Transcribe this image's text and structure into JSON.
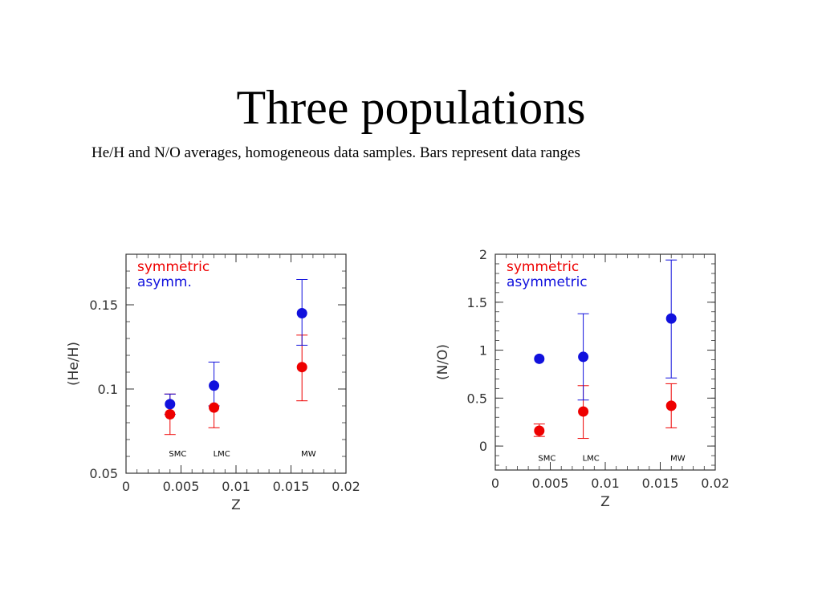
{
  "slide": {
    "title": "Three populations",
    "subtitle": "He/H and N/O averages, homogeneous data samples. Bars represent data ranges"
  },
  "colors": {
    "symmetric": "#ee0000",
    "asymmetric": "#1111dd",
    "frame": "#333333"
  },
  "chart_data": [
    {
      "type": "scatter",
      "error_bars": true,
      "xlabel": "Z",
      "ylabel": "(He/H)",
      "xlim": [
        0,
        0.02
      ],
      "ylim": [
        0.05,
        0.18
      ],
      "x_ticks": [
        0,
        0.005,
        0.01,
        0.015,
        0.02
      ],
      "x_tick_labels": [
        "0",
        "0.005",
        "0.01",
        "0.015",
        "0.02"
      ],
      "y_ticks": [
        0.05,
        0.1,
        0.15
      ],
      "y_tick_labels": [
        "0.05",
        "0.1",
        "0.15"
      ],
      "annotations": [
        {
          "x": 0.0047,
          "y": 0.062,
          "text": "SMC"
        },
        {
          "x": 0.0087,
          "y": 0.062,
          "text": "LMC"
        },
        {
          "x": 0.0166,
          "y": 0.062,
          "text": "MW"
        }
      ],
      "legend": {
        "placement": "top-left"
      },
      "series": [
        {
          "name": "symmetric",
          "color": "#ee0000",
          "points": [
            {
              "x": 0.004,
              "y": 0.085,
              "lo": 0.073,
              "hi": 0.097
            },
            {
              "x": 0.008,
              "y": 0.089,
              "lo": 0.077,
              "hi": 0.09
            },
            {
              "x": 0.016,
              "y": 0.113,
              "lo": 0.093,
              "hi": 0.132
            }
          ]
        },
        {
          "name": "asymm.",
          "color": "#1111dd",
          "points": [
            {
              "x": 0.004,
              "y": 0.091,
              "lo": 0.085,
              "hi": 0.097
            },
            {
              "x": 0.008,
              "y": 0.102,
              "lo": 0.09,
              "hi": 0.116
            },
            {
              "x": 0.016,
              "y": 0.145,
              "lo": 0.126,
              "hi": 0.165
            }
          ]
        }
      ]
    },
    {
      "type": "scatter",
      "error_bars": true,
      "xlabel": "Z",
      "ylabel": "(N/O)",
      "xlim": [
        0,
        0.02
      ],
      "ylim": [
        -0.25,
        2.0
      ],
      "x_ticks": [
        0,
        0.005,
        0.01,
        0.015,
        0.02
      ],
      "x_tick_labels": [
        "0",
        "0.005",
        "0.01",
        "0.015",
        "0.02"
      ],
      "y_ticks": [
        0,
        0.5,
        1,
        1.5,
        2
      ],
      "y_tick_labels": [
        "0",
        "0.5",
        "1",
        "1.5",
        "2"
      ],
      "annotations": [
        {
          "x": 0.0047,
          "y": -0.12,
          "text": "SMC"
        },
        {
          "x": 0.0087,
          "y": -0.12,
          "text": "LMC"
        },
        {
          "x": 0.0166,
          "y": -0.12,
          "text": "MW"
        }
      ],
      "legend": {
        "placement": "top-left"
      },
      "series": [
        {
          "name": "symmetric",
          "color": "#ee0000",
          "points": [
            {
              "x": 0.004,
              "y": 0.16,
              "lo": 0.1,
              "hi": 0.23
            },
            {
              "x": 0.008,
              "y": 0.36,
              "lo": 0.08,
              "hi": 0.63
            },
            {
              "x": 0.016,
              "y": 0.42,
              "lo": 0.19,
              "hi": 0.65
            }
          ]
        },
        {
          "name": "asymmetric",
          "color": "#1111dd",
          "points": [
            {
              "x": 0.004,
              "y": 0.91,
              "lo": 0.91,
              "hi": 0.91
            },
            {
              "x": 0.008,
              "y": 0.93,
              "lo": 0.48,
              "hi": 1.38
            },
            {
              "x": 0.016,
              "y": 1.33,
              "lo": 0.71,
              "hi": 1.94
            }
          ]
        }
      ]
    }
  ]
}
